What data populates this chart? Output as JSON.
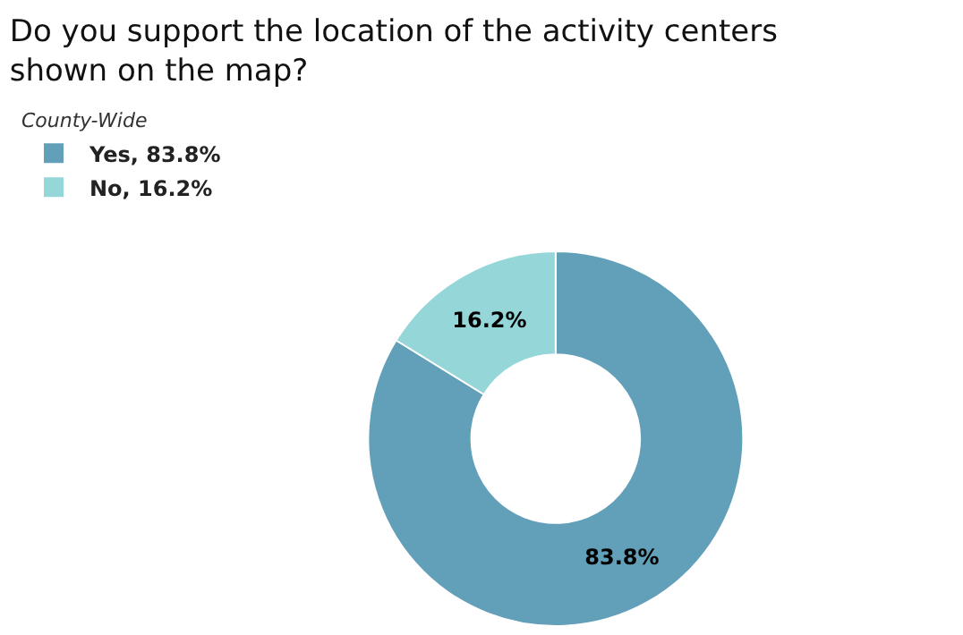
{
  "chart_data": {
    "type": "donut",
    "title": "Do you support the location of the activity centers shown on the map?",
    "legend_title": "County-Wide",
    "categories": [
      "Yes, 83.8%",
      "No, 16.2%"
    ],
    "values": [
      83.8,
      16.2
    ],
    "colors": [
      "#629fb8",
      "#95d6d8"
    ],
    "value_labels": [
      "83.8%",
      "16.2%"
    ],
    "legend": "top left"
  }
}
